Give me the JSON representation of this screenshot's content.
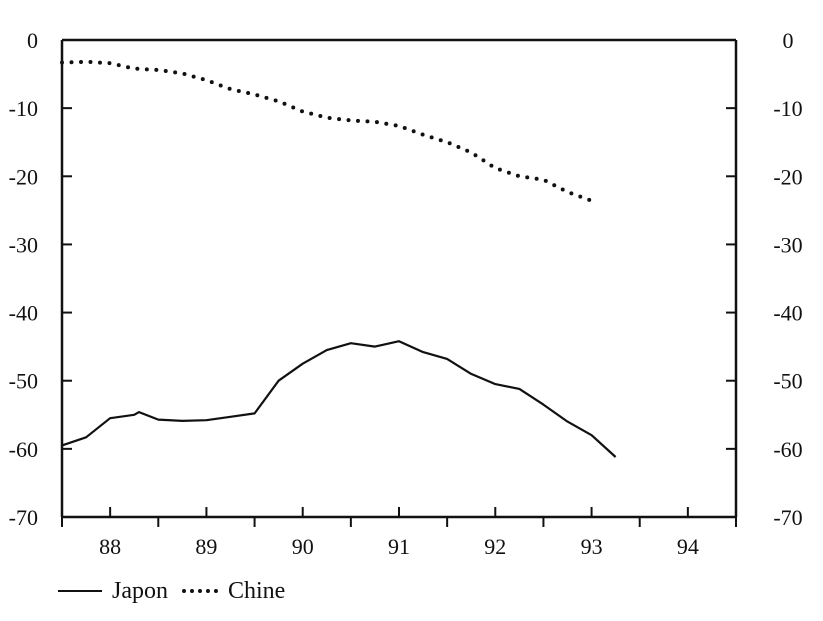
{
  "chart_data": {
    "type": "line",
    "title": "",
    "xlabel": "",
    "ylabel": "",
    "ylim": [
      -70,
      0
    ],
    "xlim": [
      87.5,
      94.5
    ],
    "x_ticks": [
      88,
      89,
      90,
      91,
      92,
      93,
      94
    ],
    "x_tick_labels": [
      "88",
      "89",
      "90",
      "91",
      "92",
      "93",
      "94"
    ],
    "y_ticks": [
      0,
      -10,
      -20,
      -30,
      -40,
      -50,
      -60,
      -70
    ],
    "y_tick_labels_left": [
      "0",
      "-10",
      "-20",
      "-30",
      "-40",
      "-50",
      "-60",
      "-70"
    ],
    "y_tick_labels_right": [
      "0",
      "-10",
      "-20",
      "-30",
      "-40",
      "-50",
      "-60",
      "-70"
    ],
    "grid": false,
    "legend_position": "bottom-left",
    "series": [
      {
        "name": "Japon",
        "style": "solid",
        "color": "#111111",
        "points": [
          [
            87.5,
            -59.5
          ],
          [
            87.75,
            -58.3
          ],
          [
            88.0,
            -55.5
          ],
          [
            88.25,
            -55.0
          ],
          [
            88.3,
            -54.6
          ],
          [
            88.5,
            -55.7
          ],
          [
            88.75,
            -55.9
          ],
          [
            89.0,
            -55.8
          ],
          [
            89.25,
            -55.3
          ],
          [
            89.5,
            -54.8
          ],
          [
            89.75,
            -50.0
          ],
          [
            90.0,
            -47.5
          ],
          [
            90.25,
            -45.5
          ],
          [
            90.5,
            -44.5
          ],
          [
            90.75,
            -45.0
          ],
          [
            91.0,
            -44.2
          ],
          [
            91.25,
            -45.8
          ],
          [
            91.5,
            -46.8
          ],
          [
            91.75,
            -49.0
          ],
          [
            92.0,
            -50.5
          ],
          [
            92.25,
            -51.2
          ],
          [
            92.5,
            -53.5
          ],
          [
            92.75,
            -56.0
          ],
          [
            93.0,
            -58.0
          ],
          [
            93.25,
            -61.2
          ]
        ]
      },
      {
        "name": "Chine",
        "style": "dotted",
        "color": "#111111",
        "points": [
          [
            87.5,
            -3.3
          ],
          [
            87.75,
            -3.2
          ],
          [
            88.0,
            -3.4
          ],
          [
            88.25,
            -4.2
          ],
          [
            88.5,
            -4.4
          ],
          [
            88.75,
            -4.9
          ],
          [
            89.0,
            -5.9
          ],
          [
            89.25,
            -7.2
          ],
          [
            89.5,
            -8.0
          ],
          [
            89.75,
            -9.0
          ],
          [
            90.0,
            -10.5
          ],
          [
            90.25,
            -11.4
          ],
          [
            90.5,
            -11.8
          ],
          [
            90.75,
            -12.0
          ],
          [
            91.0,
            -12.6
          ],
          [
            91.25,
            -13.9
          ],
          [
            91.5,
            -15.0
          ],
          [
            91.75,
            -16.5
          ],
          [
            92.0,
            -18.8
          ],
          [
            92.25,
            -20.0
          ],
          [
            92.5,
            -20.5
          ],
          [
            92.75,
            -22.3
          ],
          [
            93.0,
            -23.6
          ]
        ]
      }
    ]
  },
  "legend": {
    "items": [
      {
        "label": "Japon",
        "style": "solid"
      },
      {
        "label": "Chine",
        "style": "dotted"
      }
    ]
  }
}
